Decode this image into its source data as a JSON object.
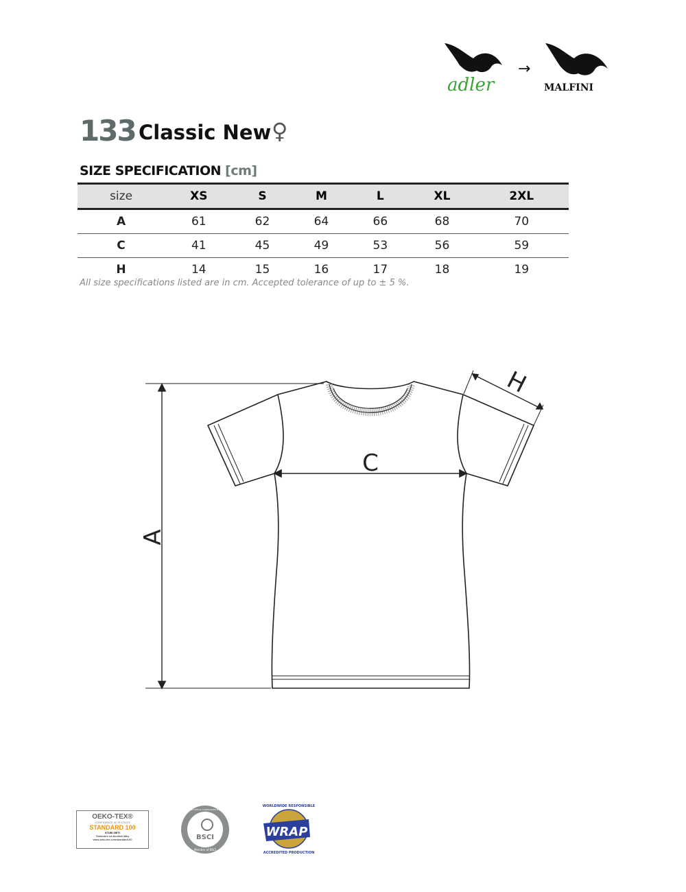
{
  "brands": {
    "old": "adler",
    "arrow": "→",
    "new": "MALFINI"
  },
  "product": {
    "code": "133",
    "name": "Classic New",
    "gender_symbol": "♀"
  },
  "spec": {
    "title": "SIZE SPECIFICATION",
    "unit": "[cm]"
  },
  "table": {
    "headers": [
      "size",
      "XS",
      "S",
      "M",
      "L",
      "XL",
      "2XL"
    ],
    "rows": [
      {
        "label": "A",
        "values": [
          "61",
          "62",
          "64",
          "66",
          "68",
          "70"
        ]
      },
      {
        "label": "C",
        "values": [
          "41",
          "45",
          "49",
          "53",
          "56",
          "59"
        ]
      },
      {
        "label": "H",
        "values": [
          "14",
          "15",
          "16",
          "17",
          "18",
          "19"
        ]
      }
    ]
  },
  "note": "All size specifications listed are in cm. Accepted tolerance of up to ± 5 %.",
  "diagram": {
    "label_a": "A",
    "label_c": "C",
    "label_h": "H"
  },
  "certifications": {
    "oekotex": {
      "title": "OEKO-TEX®",
      "subtitle": "CONFIDENCE IN TEXTILES",
      "standard": "STANDARD 100",
      "id": "67150 OETI",
      "line1": "Testováno na škodlivé látky",
      "line2": "www.oeko-tex.com/standard100"
    },
    "bsci": {
      "ring": "BUSINESS SOCIAL COMPLIANCE INITIATIVE",
      "center": "BSCI",
      "bottom": "Member of BSCI"
    },
    "wrap": {
      "center": "WRAP",
      "top": "WORLDWIDE RESPONSIBLE",
      "bottom": "ACCREDITED PRODUCTION"
    }
  },
  "colors": {
    "adler_green": "#3aa335",
    "accent_gray": "#5f6b6a",
    "header_bg": "#e2e2e2",
    "oeko_orange": "#f39200"
  }
}
